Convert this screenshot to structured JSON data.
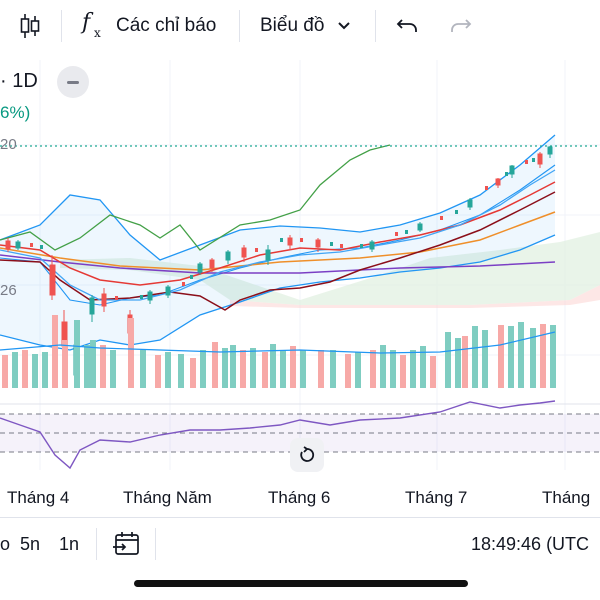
{
  "toolbar": {
    "indicators_label": "Các chỉ báo",
    "chart_type_label": "Biểu đồ",
    "icons": [
      "candlestick-icon",
      "function-fx-icon",
      "chevron-down-icon",
      "undo-icon",
      "redo-icon"
    ]
  },
  "legend": {
    "symbol_interval": "· 1D",
    "change_pct": "6%)",
    "price_label_top": "20",
    "price_label_mid": "26"
  },
  "time_axis": {
    "months": [
      "Tháng 4",
      "Tháng Năm",
      "Tháng 6",
      "Tháng 7",
      "Tháng"
    ]
  },
  "bottom_bar": {
    "ranges": [
      "o",
      "5n",
      "1n"
    ],
    "time": "18:49:46 (UTC"
  },
  "colors": {
    "up": "#26a69a",
    "down": "#ef5350",
    "volume_up": "#7fcdc1",
    "volume_down": "#f7a9a7",
    "bollinger": "#2196f3",
    "ma_red": "#e53935",
    "ma_orange": "#ef8f2a",
    "ma_purple": "#7b3fc4",
    "ma_maroon": "#8b0f1a",
    "ma_green": "#43a047",
    "rsi_line": "#7e57c2",
    "last_price_line": "#22ab94"
  }
}
